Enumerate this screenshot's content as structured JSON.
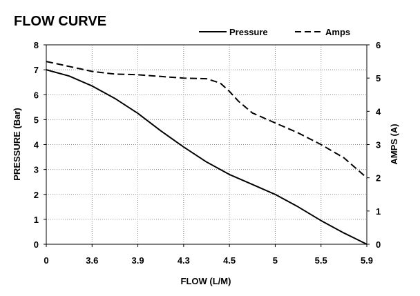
{
  "chart_data": {
    "type": "line",
    "title": "FLOW CURVE",
    "xlabel": "FLOW (L/M)",
    "ylabel": "PRESSURE (Bar)",
    "y2label": "AMPS (A)",
    "categories": [
      "0",
      "3.6",
      "3.9",
      "4.3",
      "4.5",
      "5",
      "5.5",
      "5.9"
    ],
    "ylim": [
      0,
      8
    ],
    "y2lim": [
      0,
      6
    ],
    "yticks": [
      0,
      1,
      2,
      3,
      4,
      5,
      6,
      7,
      8
    ],
    "y2ticks": [
      0,
      1,
      2,
      3,
      4,
      5,
      6
    ],
    "grid": true,
    "legend_position": "top-right",
    "series": [
      {
        "name": "Pressure",
        "axis": "left",
        "style": "solid",
        "color": "#000000",
        "x": [
          0,
          0.5,
          1,
          1.5,
          2,
          2.5,
          3,
          3.5,
          4,
          4.5,
          5,
          5.5,
          6,
          6.5,
          7
        ],
        "values": [
          7.0,
          6.75,
          6.35,
          5.85,
          5.25,
          4.55,
          3.9,
          3.3,
          2.8,
          2.4,
          2.0,
          1.5,
          0.95,
          0.45,
          0.0
        ]
      },
      {
        "name": "Amps",
        "axis": "right",
        "style": "dashed",
        "color": "#000000",
        "x": [
          0,
          0.5,
          1,
          1.5,
          2,
          2.5,
          3,
          3.5,
          3.8,
          4.0,
          4.2,
          4.5,
          5,
          5.5,
          6,
          6.5,
          7
        ],
        "values": [
          5.5,
          5.35,
          5.2,
          5.12,
          5.1,
          5.05,
          5.0,
          4.98,
          4.85,
          4.6,
          4.3,
          3.95,
          3.65,
          3.35,
          3.0,
          2.6,
          2.0
        ]
      }
    ]
  }
}
